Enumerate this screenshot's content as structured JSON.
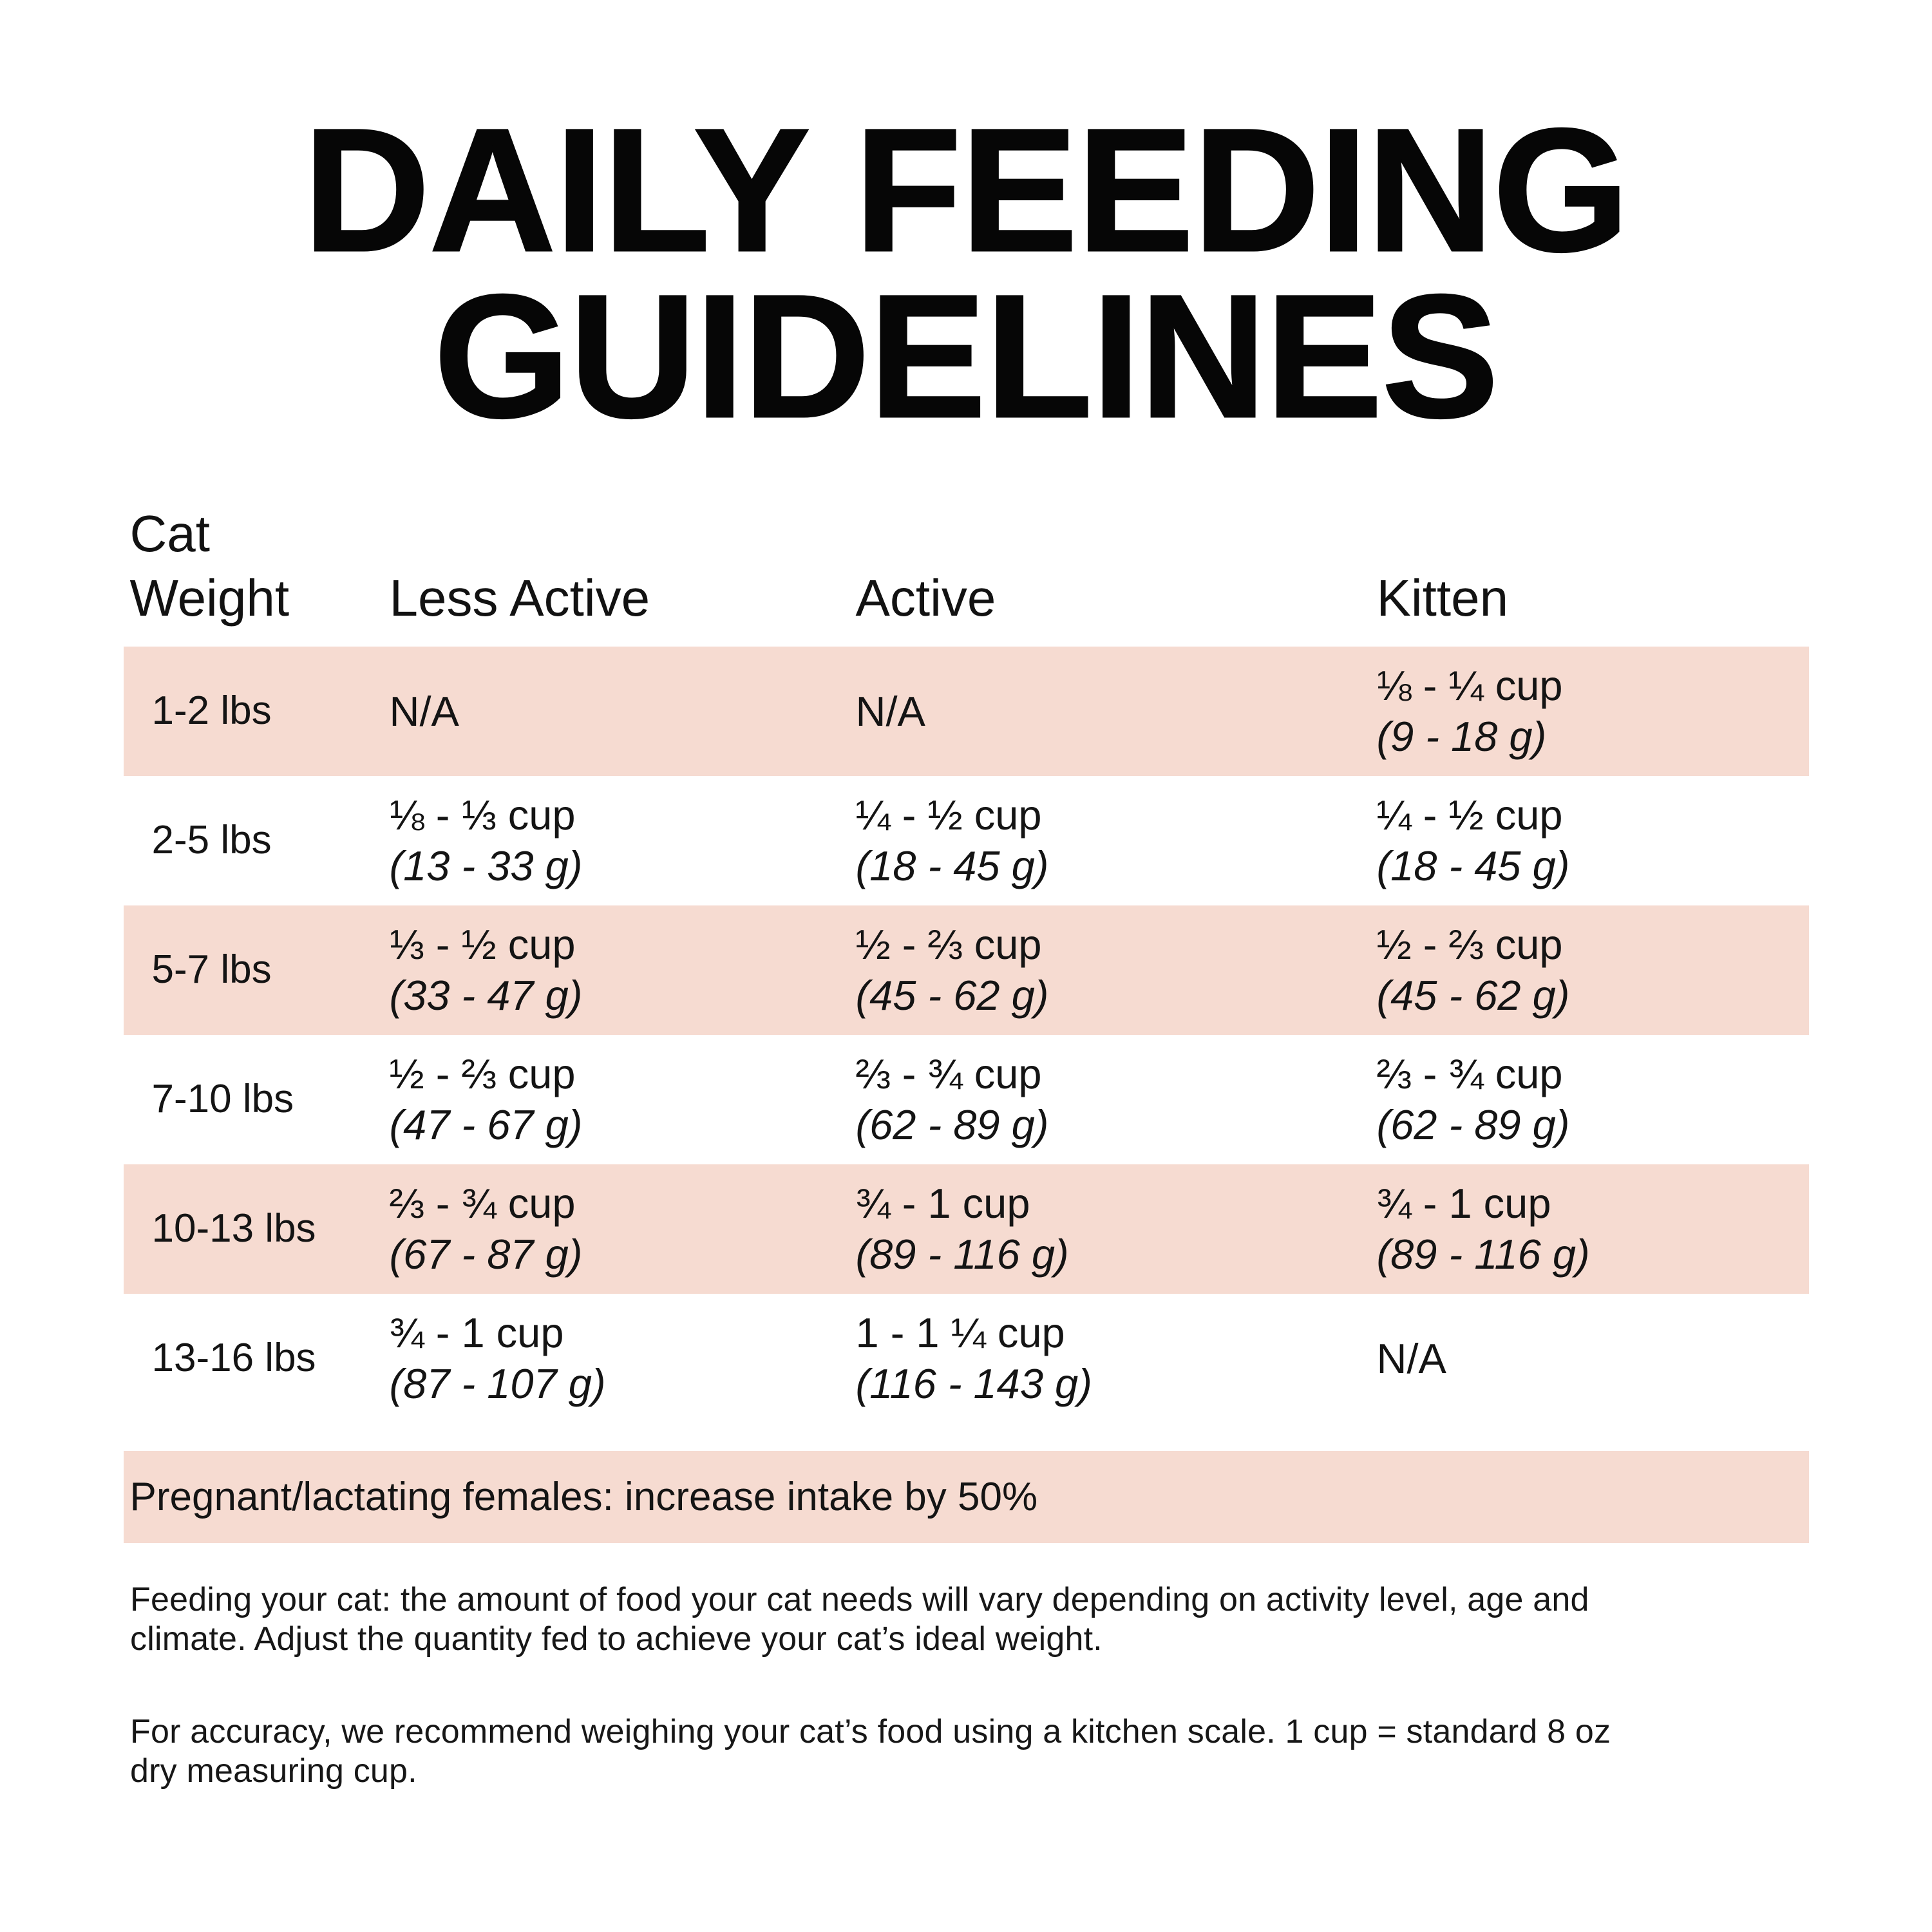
{
  "title": {
    "line1": "DAILY FEEDING",
    "line2": "GUIDELINES"
  },
  "table": {
    "highlight_color": "#f6dbd1",
    "weight_header": {
      "line1": "Cat",
      "line2": "Weight"
    },
    "headers": {
      "less_active": "Less Active",
      "active": "Active",
      "kitten": "Kitten"
    },
    "rows": [
      {
        "weight": "1-2 lbs",
        "less_active": {
          "amount": "N/A",
          "grams": ""
        },
        "active": {
          "amount": "N/A",
          "grams": ""
        },
        "kitten": {
          "amount": "⅛ - ¼ cup",
          "grams": "(9 - 18 g)"
        }
      },
      {
        "weight": "2-5 lbs",
        "less_active": {
          "amount": "⅛ - ⅓ cup",
          "grams": "(13 - 33 g)"
        },
        "active": {
          "amount": "¼ - ½ cup",
          "grams": "(18 - 45 g)"
        },
        "kitten": {
          "amount": "¼ - ½ cup",
          "grams": "(18 - 45 g)"
        }
      },
      {
        "weight": "5-7 lbs",
        "less_active": {
          "amount": "⅓ - ½ cup",
          "grams": "(33 - 47 g)"
        },
        "active": {
          "amount": "½ - ⅔ cup",
          "grams": "(45 - 62 g)"
        },
        "kitten": {
          "amount": "½ - ⅔ cup",
          "grams": "(45 - 62 g)"
        }
      },
      {
        "weight": "7-10 lbs",
        "less_active": {
          "amount": "½ - ⅔ cup",
          "grams": "(47 - 67 g)"
        },
        "active": {
          "amount": "⅔ - ¾ cup",
          "grams": "(62 - 89 g)"
        },
        "kitten": {
          "amount": "⅔ - ¾ cup",
          "grams": "(62 - 89 g)"
        }
      },
      {
        "weight": "10-13 lbs",
        "less_active": {
          "amount": "⅔ - ¾ cup",
          "grams": "(67 - 87 g)"
        },
        "active": {
          "amount": "¾ - 1 cup",
          "grams": "(89 - 116 g)"
        },
        "kitten": {
          "amount": "¾ - 1 cup",
          "grams": "(89 - 116 g)"
        }
      },
      {
        "weight": "13-16 lbs",
        "less_active": {
          "amount": "¾ - 1 cup",
          "grams": "(87 - 107 g)"
        },
        "active": {
          "amount": "1 - 1 ¼ cup",
          "grams": "(116 - 143 g)"
        },
        "kitten": {
          "amount": "N/A",
          "grams": ""
        }
      }
    ]
  },
  "banner": {
    "text": "Pregnant/lactating females: increase intake by 50%"
  },
  "notes": {
    "feeding": "Feeding your cat: the amount of food your cat needs will vary depending on activity level, age and climate. Adjust the quantity fed to achieve your cat’s ideal weight.",
    "accuracy": "For accuracy, we recommend weighing your cat’s food using a kitchen scale. 1 cup = standard 8 oz dry measuring cup."
  }
}
